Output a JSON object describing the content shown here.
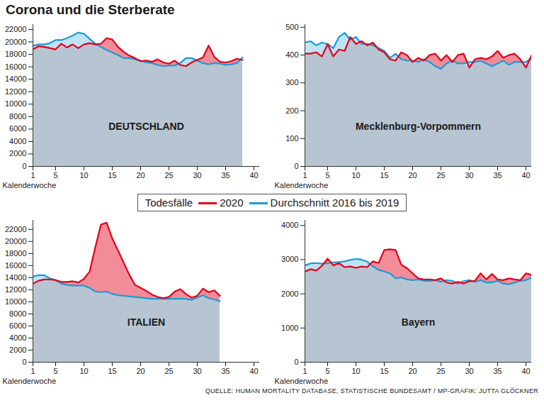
{
  "title": "Corona und die Sterberate",
  "legend_title": "Todesfälle",
  "source": "QUELLE: HUMAN MORTALITY DATABASE, STATISTISCHE BUNDESAMT / MP-GRAFIK: JUTTA GLÖCKNER",
  "chart_data": [
    {
      "type": "area",
      "title": "DEUTSCHLAND",
      "x_label": "Kalenderwoche",
      "x": [
        1,
        2,
        3,
        4,
        5,
        6,
        7,
        8,
        9,
        10,
        11,
        12,
        13,
        14,
        15,
        16,
        17,
        18,
        19,
        20,
        21,
        22,
        23,
        24,
        25,
        26,
        27,
        28,
        29,
        30,
        31,
        32,
        33,
        34,
        35,
        36,
        37,
        38
      ],
      "series": [
        {
          "name": "2020",
          "color": "#e3001b",
          "values": [
            18800,
            19300,
            19200,
            19000,
            18800,
            19700,
            19100,
            19600,
            19000,
            19600,
            19800,
            19600,
            19700,
            20600,
            20400,
            19200,
            18400,
            17800,
            17400,
            16900,
            17000,
            16800,
            17200,
            16700,
            16500,
            17000,
            16300,
            16100,
            16700,
            17100,
            17500,
            19400,
            17600,
            16800,
            16700,
            16900,
            17300,
            17100
          ]
        },
        {
          "name": "Durchschnitt 2016 bis 2019",
          "color": "#1d9ad6",
          "values": [
            19400,
            19600,
            19600,
            19800,
            20300,
            20300,
            20600,
            21000,
            21500,
            21300,
            20500,
            19700,
            19200,
            18700,
            18300,
            17900,
            17400,
            17400,
            17200,
            17000,
            16700,
            16600,
            16300,
            16100,
            16200,
            16200,
            16600,
            17400,
            17400,
            17000,
            16600,
            16400,
            16600,
            16500,
            16300,
            16400,
            16600,
            17500
          ]
        }
      ],
      "xlim": [
        1,
        41
      ],
      "xticks": [
        1,
        5,
        10,
        15,
        20,
        25,
        30,
        35,
        40
      ],
      "ylim": [
        0,
        22800
      ],
      "yticks": [
        0,
        2000,
        4000,
        6000,
        8000,
        10000,
        12000,
        14000,
        16000,
        18000,
        20000,
        22000
      ]
    },
    {
      "type": "area",
      "title": "Mecklenburg-Vorpommern",
      "x_label": "Kalenderwoche",
      "x": [
        1,
        2,
        3,
        4,
        5,
        6,
        7,
        8,
        9,
        10,
        11,
        12,
        13,
        14,
        15,
        16,
        17,
        18,
        19,
        20,
        21,
        22,
        23,
        24,
        25,
        26,
        27,
        28,
        29,
        30,
        31,
        32,
        33,
        34,
        35,
        36,
        37,
        38,
        39,
        40,
        41
      ],
      "series": [
        {
          "name": "2020",
          "color": "#e3001b",
          "values": [
            405,
            405,
            410,
            395,
            440,
            395,
            420,
            415,
            465,
            440,
            450,
            435,
            445,
            420,
            410,
            385,
            380,
            410,
            400,
            375,
            390,
            380,
            400,
            405,
            380,
            400,
            375,
            400,
            405,
            355,
            385,
            390,
            385,
            395,
            415,
            390,
            400,
            405,
            385,
            355,
            400
          ]
        },
        {
          "name": "Durchschnitt 2016 bis 2019",
          "color": "#1d9ad6",
          "values": [
            445,
            450,
            435,
            445,
            440,
            425,
            465,
            480,
            455,
            465,
            440,
            440,
            435,
            425,
            415,
            390,
            405,
            385,
            380,
            380,
            375,
            385,
            375,
            360,
            350,
            370,
            380,
            370,
            370,
            375,
            375,
            380,
            370,
            360,
            370,
            380,
            365,
            375,
            375,
            375,
            390
          ]
        }
      ],
      "xlim": [
        1,
        41
      ],
      "xticks": [
        1,
        5,
        10,
        15,
        20,
        25,
        30,
        35,
        40
      ],
      "ylim": [
        0,
        510
      ],
      "yticks": [
        0,
        100,
        200,
        300,
        400,
        500
      ]
    },
    {
      "type": "area",
      "title": "ITALIEN",
      "x_label": "Kalenderwoche",
      "x": [
        1,
        2,
        3,
        4,
        5,
        6,
        7,
        8,
        9,
        10,
        11,
        12,
        13,
        14,
        15,
        16,
        17,
        18,
        19,
        20,
        21,
        22,
        23,
        24,
        25,
        26,
        27,
        28,
        29,
        30,
        31,
        32,
        33,
        34
      ],
      "series": [
        {
          "name": "2020",
          "color": "#e3001b",
          "values": [
            13000,
            13500,
            13700,
            13700,
            13600,
            13300,
            13300,
            13400,
            13200,
            13800,
            15000,
            19000,
            22800,
            23100,
            20500,
            18500,
            16500,
            14500,
            12800,
            12300,
            11800,
            11200,
            10800,
            10600,
            10800,
            11700,
            12100,
            11300,
            10700,
            11000,
            12200,
            11600,
            11900,
            11000
          ]
        },
        {
          "name": "Durchschnitt 2016 bis 2019",
          "color": "#1d9ad6",
          "values": [
            14200,
            14400,
            14400,
            13900,
            13600,
            13000,
            12800,
            12700,
            12700,
            12700,
            12300,
            11700,
            11600,
            11700,
            11300,
            11100,
            11000,
            10900,
            10800,
            10700,
            10600,
            10500,
            10500,
            10500,
            10500,
            10500,
            10500,
            10500,
            10300,
            10700,
            11100,
            10600,
            10400,
            10100
          ]
        }
      ],
      "xlim": [
        1,
        41
      ],
      "xticks": [
        1,
        5,
        10,
        15,
        20,
        25,
        30,
        35,
        40
      ],
      "ylim": [
        0,
        23500
      ],
      "yticks": [
        0,
        2000,
        4000,
        6000,
        8000,
        10000,
        12000,
        14000,
        16000,
        18000,
        20000,
        22000
      ]
    },
    {
      "type": "area",
      "title": "Bayern",
      "x_label": "Kalenderwoche",
      "x": [
        1,
        2,
        3,
        4,
        5,
        6,
        7,
        8,
        9,
        10,
        11,
        12,
        13,
        14,
        15,
        16,
        17,
        18,
        19,
        20,
        21,
        22,
        23,
        24,
        25,
        26,
        27,
        28,
        29,
        30,
        31,
        32,
        33,
        34,
        35,
        36,
        37,
        38,
        39,
        40,
        41
      ],
      "series": [
        {
          "name": "2020",
          "color": "#e3001b",
          "values": [
            2650,
            2720,
            2680,
            2820,
            3030,
            2830,
            2900,
            2780,
            2800,
            2760,
            2800,
            2780,
            2950,
            2900,
            3280,
            3300,
            3280,
            2850,
            2750,
            2600,
            2450,
            2420,
            2420,
            2400,
            2450,
            2330,
            2300,
            2350,
            2300,
            2370,
            2380,
            2600,
            2420,
            2580,
            2420,
            2400,
            2450,
            2420,
            2400,
            2600,
            2560
          ]
        },
        {
          "name": "Durchschnitt 2016 bis 2019",
          "color": "#1d9ad6",
          "values": [
            2830,
            2890,
            2900,
            2880,
            2890,
            2920,
            2930,
            2950,
            2990,
            3020,
            3000,
            2940,
            2800,
            2700,
            2650,
            2600,
            2450,
            2480,
            2420,
            2400,
            2420,
            2380,
            2380,
            2400,
            2350,
            2400,
            2380,
            2300,
            2370,
            2400,
            2350,
            2400,
            2330,
            2330,
            2380,
            2300,
            2280,
            2330,
            2380,
            2400,
            2470
          ]
        }
      ],
      "xlim": [
        1,
        41
      ],
      "xticks": [
        1,
        5,
        10,
        15,
        20,
        25,
        30,
        35,
        40
      ],
      "ylim": [
        0,
        4150
      ],
      "yticks": [
        0,
        1000,
        2000,
        3000,
        4000
      ]
    }
  ]
}
